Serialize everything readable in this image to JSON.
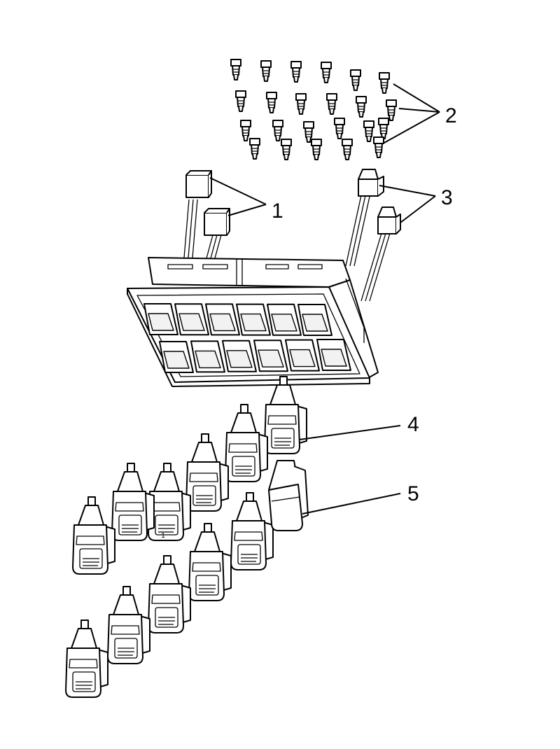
{
  "diagram": {
    "callouts": [
      {
        "id": "1",
        "label": "1"
      },
      {
        "id": "2",
        "label": "2"
      },
      {
        "id": "3",
        "label": "3"
      },
      {
        "id": "4",
        "label": "4"
      },
      {
        "id": "5",
        "label": "5"
      }
    ],
    "switch_key_label": "1",
    "colors": {
      "line": "#000000",
      "background": "#ffffff",
      "shade": "#f2f2f2"
    }
  }
}
